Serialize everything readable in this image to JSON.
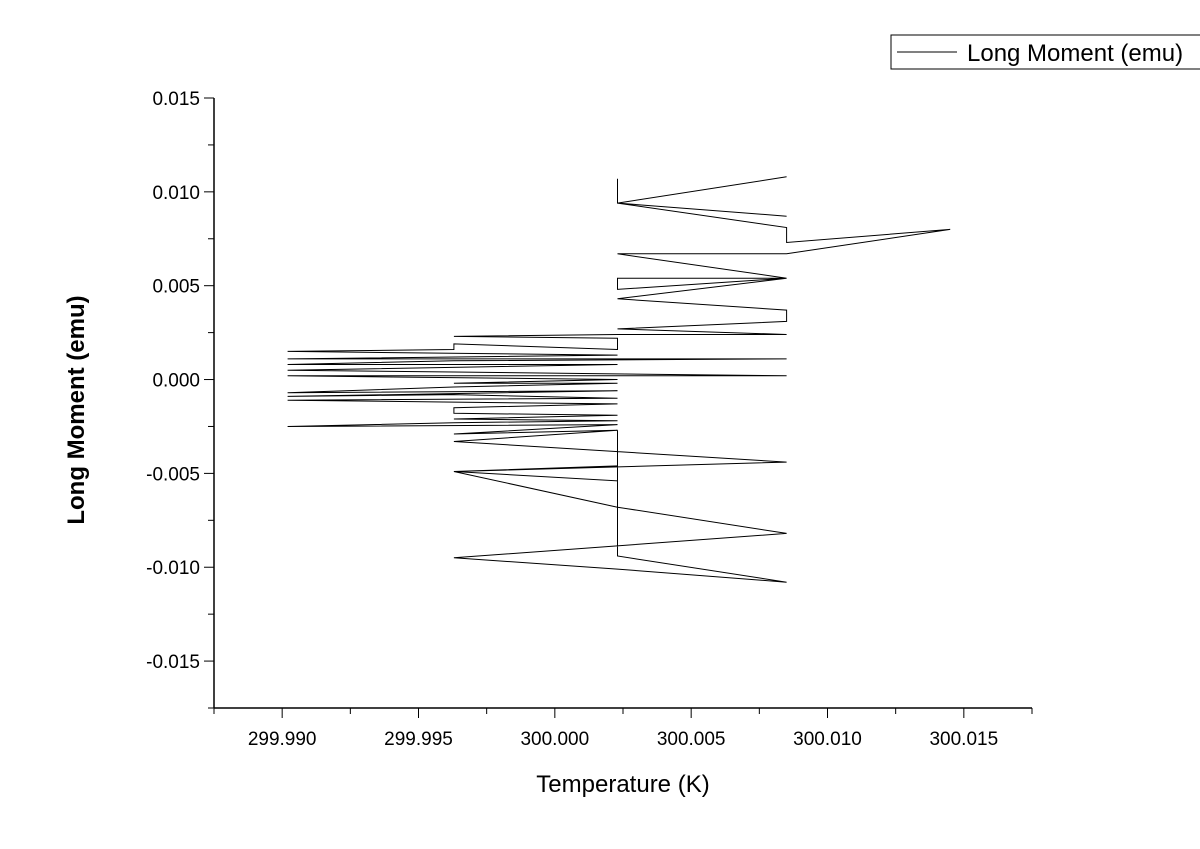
{
  "chart_data": {
    "type": "line",
    "xlabel": "Temperature (K)",
    "ylabel": "Long Moment (emu)",
    "xlim": [
      299.9875,
      300.0175
    ],
    "ylim": [
      -0.0175,
      0.015
    ],
    "x_ticks": [
      "299.990",
      "299.995",
      "300.000",
      "300.005",
      "300.010",
      "300.015"
    ],
    "x_tick_values": [
      299.99,
      299.995,
      300.0,
      300.005,
      300.01,
      300.015
    ],
    "y_ticks": [
      "0.015",
      "0.010",
      "0.005",
      "0.000",
      "-0.005",
      "-0.010",
      "-0.015"
    ],
    "y_tick_values": [
      0.015,
      0.01,
      0.005,
      0.0,
      -0.005,
      -0.01,
      -0.015
    ],
    "legend": {
      "placement": "top-right",
      "label": "Long Moment (emu)"
    },
    "grid": false,
    "series": [
      {
        "name": "Long Moment (emu)",
        "color": "#000000",
        "points": [
          [
            300.0023,
            0.0107
          ],
          [
            300.0023,
            0.0094
          ],
          [
            300.0085,
            0.0108
          ],
          [
            300.0023,
            0.0094
          ],
          [
            300.0085,
            0.0087
          ],
          [
            300.0023,
            0.0094
          ],
          [
            300.0085,
            0.0081
          ],
          [
            300.0085,
            0.0073
          ],
          [
            300.0145,
            0.008
          ],
          [
            300.0085,
            0.0067
          ],
          [
            300.0023,
            0.0067
          ],
          [
            300.0085,
            0.0054
          ],
          [
            300.0023,
            0.0054
          ],
          [
            300.0023,
            0.0048
          ],
          [
            300.0085,
            0.0054
          ],
          [
            300.0023,
            0.0043
          ],
          [
            300.0085,
            0.0037
          ],
          [
            300.0085,
            0.0031
          ],
          [
            300.0023,
            0.0027
          ],
          [
            300.0085,
            0.0024
          ],
          [
            300.0023,
            0.0024
          ],
          [
            299.9963,
            0.0023
          ],
          [
            300.0023,
            0.0022
          ],
          [
            300.0023,
            0.0016
          ],
          [
            299.9963,
            0.0019
          ],
          [
            299.9963,
            0.0016
          ],
          [
            299.9902,
            0.0015
          ],
          [
            300.0023,
            0.0013
          ],
          [
            299.9902,
            0.0011
          ],
          [
            300.0085,
            0.0011
          ],
          [
            299.9963,
            0.001
          ],
          [
            299.9902,
            0.0008
          ],
          [
            300.0023,
            0.0008
          ],
          [
            299.9902,
            0.0005
          ],
          [
            299.9963,
            0.0004
          ],
          [
            300.0085,
            0.0002
          ],
          [
            299.9902,
            0.0002
          ],
          [
            300.0023,
            0.0
          ],
          [
            299.9963,
            -0.0002
          ],
          [
            300.0023,
            -0.0002
          ],
          [
            299.9963,
            -0.0004
          ],
          [
            299.9902,
            -0.0007
          ],
          [
            300.0023,
            -0.0006
          ],
          [
            299.9902,
            -0.0009
          ],
          [
            299.9963,
            -0.0008
          ],
          [
            300.0023,
            -0.001
          ],
          [
            299.9902,
            -0.0011
          ],
          [
            299.9963,
            -0.0012
          ],
          [
            300.0023,
            -0.0013
          ],
          [
            299.9963,
            -0.0015
          ],
          [
            299.9963,
            -0.0018
          ],
          [
            300.0023,
            -0.0019
          ],
          [
            299.9963,
            -0.0021
          ],
          [
            300.0023,
            -0.0022
          ],
          [
            299.9963,
            -0.0023
          ],
          [
            299.9902,
            -0.0025
          ],
          [
            300.0023,
            -0.0024
          ],
          [
            299.9963,
            -0.0029
          ],
          [
            300.0023,
            -0.0027
          ],
          [
            299.9963,
            -0.0033
          ],
          [
            300.0085,
            -0.0044
          ],
          [
            299.9963,
            -0.0049
          ],
          [
            300.0023,
            -0.0046
          ],
          [
            300.0023,
            -0.0054
          ],
          [
            299.9963,
            -0.0049
          ],
          [
            300.0023,
            -0.0068
          ],
          [
            300.0085,
            -0.0082
          ],
          [
            299.9963,
            -0.0095
          ],
          [
            300.0023,
            -0.0101
          ],
          [
            300.0085,
            -0.0108
          ],
          [
            300.0023,
            -0.0094
          ],
          [
            300.0023,
            -0.0027
          ]
        ]
      }
    ]
  }
}
